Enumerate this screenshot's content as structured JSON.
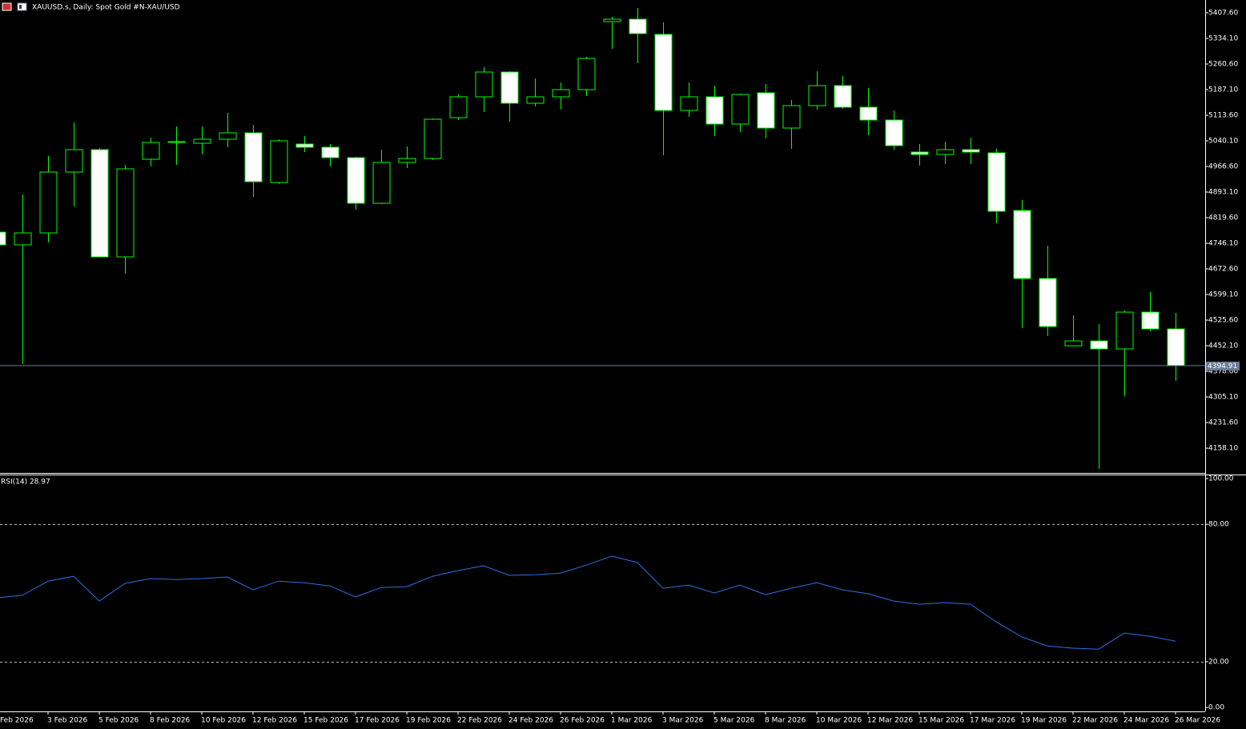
{
  "chart_data": [
    {
      "type": "candlestick",
      "title": "XAUUSD.s, Daily:  Spot Gold #N-XAU/USD",
      "categories": [
        "Feb 2026",
        null,
        "3 Feb 2026",
        null,
        "5 Feb 2026",
        null,
        "8 Feb 2026",
        null,
        "10 Feb 2026",
        null,
        "12 Feb 2026",
        null,
        "15 Feb 2026",
        null,
        "17 Feb 2026",
        null,
        "19 Feb 2026",
        null,
        "22 Feb 2026",
        null,
        "24 Feb 2026",
        null,
        "26 Feb 2026",
        null,
        "1 Mar 2026",
        null,
        "3 Mar 2026",
        null,
        "5 Mar 2026",
        null,
        "8 Mar 2026",
        null,
        "10 Mar 2026",
        null,
        "12 Mar 2026",
        null,
        "15 Mar 2026",
        null,
        "17 Mar 2026",
        null,
        "19 Mar 2026",
        null,
        "22 Mar 2026",
        null,
        "24 Mar 2026",
        null,
        "26 Mar 2026"
      ],
      "open": [
        4778.2,
        4741.5,
        4775.9,
        4950.5,
        5014.8,
        4707.0,
        4987.2,
        5035.5,
        5033.2,
        5044.7,
        5063.0,
        4920.6,
        5030.9,
        5021.7,
        4991.8,
        4860.9,
        4978.1,
        4989.5,
        5106.7,
        5166.4,
        5237.6,
        5148.0,
        5166.4,
        5187.1,
        5382.3,
        5389.2,
        5345.6,
        5127.4,
        5166.4,
        5088.3,
        5177.9,
        5076.8,
        5141.1,
        5198.6,
        5136.6,
        5099.8,
        5007.9,
        5001.0,
        5014.8,
        5005.6,
        4840.2,
        4645.0,
        4452.0,
        4465.8,
        4442.9,
        4548.5,
        4500.3
      ],
      "high": [
        4782.8,
        4886.2,
        4996.4,
        5092.9,
        5019.4,
        4971.2,
        5049.3,
        5081.4,
        5081.4,
        5120.5,
        5086.0,
        5044.7,
        5053.9,
        5030.9,
        4994.1,
        5014.8,
        5024.0,
        5104.4,
        5173.3,
        5251.4,
        5239.9,
        5219.2,
        5207.8,
        5281.3,
        5396.1,
        5421.4,
        5380.0,
        5207.8,
        5198.6,
        5175.6,
        5203.2,
        5157.2,
        5239.9,
        5226.1,
        5191.7,
        5127.4,
        5030.9,
        5037.8,
        5049.3,
        5017.1,
        4870.1,
        4739.2,
        4539.3,
        4514.1,
        4553.1,
        4605.9,
        4546.2
      ],
      "low": [
        4736.9,
        4399.2,
        4748.4,
        4851.7,
        4707.0,
        4658.8,
        4966.6,
        4971.2,
        5001.0,
        5021.7,
        4879.3,
        4916.0,
        5007.9,
        4966.6,
        4842.5,
        4858.6,
        4962.0,
        4985.0,
        5099.8,
        5122.8,
        5095.2,
        5138.9,
        5129.7,
        5168.7,
        5304.2,
        5262.9,
        4998.7,
        5109.0,
        5053.9,
        5065.3,
        5047.0,
        5017.1,
        5129.7,
        5132.0,
        5056.2,
        5014.8,
        4968.9,
        4973.5,
        4973.5,
        4803.5,
        4502.6,
        4479.6,
        4452.0,
        4098.3,
        4307.3,
        4493.4,
        4351.0
      ],
      "close": [
        4741.5,
        4775.9,
        4950.5,
        5014.8,
        4707.0,
        4959.7,
        5035.5,
        5037.8,
        5044.7,
        5063.0,
        4922.9,
        5040.1,
        5021.7,
        4991.8,
        4860.9,
        4978.1,
        4989.5,
        5102.1,
        5166.4,
        5237.6,
        5148.0,
        5166.4,
        5187.1,
        5276.7,
        5389.2,
        5347.9,
        5127.4,
        5166.4,
        5088.3,
        5173.3,
        5076.8,
        5141.1,
        5198.6,
        5136.6,
        5099.8,
        5026.3,
        5001.0,
        5014.8,
        5007.9,
        4837.9,
        4645.0,
        4507.2,
        4465.8,
        4442.9,
        4548.5,
        4500.3,
        4394.91
      ],
      "wick_color": "#00ff00",
      "bull_fill": "#000000",
      "bear_fill": "#ffffff",
      "last_price": 4394.91,
      "last_price_color": "#6a7b95",
      "ylim": [
        4087.0,
        5444.3
      ],
      "yticks": [
        {
          "value": 5407.6,
          "label": "5407.60"
        },
        {
          "value": 5334.1,
          "label": "5334.10"
        },
        {
          "value": 5260.6,
          "label": "5260.60"
        },
        {
          "value": 5187.1,
          "label": "5187.10"
        },
        {
          "value": 5113.6,
          "label": "5113.60"
        },
        {
          "value": 5040.1,
          "label": "5040.10"
        },
        {
          "value": 4966.6,
          "label": "4966.60"
        },
        {
          "value": 4893.1,
          "label": "4893.10"
        },
        {
          "value": 4819.6,
          "label": "4819.60"
        },
        {
          "value": 4746.1,
          "label": "4746.10"
        },
        {
          "value": 4672.6,
          "label": "4672.60"
        },
        {
          "value": 4599.1,
          "label": "4599.10"
        },
        {
          "value": 4525.6,
          "label": "4525.60"
        },
        {
          "value": 4452.1,
          "label": "4452.10"
        },
        {
          "value": 4378.6,
          "label": "4378.60"
        },
        {
          "value": 4305.1,
          "label": "4305.10"
        },
        {
          "value": 4231.6,
          "label": "4231.60"
        },
        {
          "value": 4158.1,
          "label": "4158.10"
        }
      ],
      "grid": false
    },
    {
      "type": "line",
      "title": "RSI(14) 28.97",
      "color": "#2f6fe8",
      "values": [
        47.9,
        49.0,
        55.2,
        57.3,
        46.5,
        54.2,
        56.3,
        55.9,
        56.3,
        57.0,
        51.4,
        55.2,
        54.5,
        53.1,
        48.3,
        52.4,
        52.8,
        57.3,
        59.8,
        61.9,
        57.7,
        58.0,
        58.7,
        62.2,
        66.1,
        63.3,
        52.1,
        53.5,
        50.0,
        53.5,
        49.3,
        52.1,
        54.5,
        51.4,
        49.7,
        46.5,
        45.1,
        45.8,
        45.1,
        37.4,
        30.8,
        26.9,
        25.9,
        25.5,
        32.5,
        31.1,
        28.97
      ],
      "ylim": [
        -1.7,
        101.4
      ],
      "yticks": [
        {
          "value": 100,
          "label": "100.00"
        },
        {
          "value": 80,
          "label": "80.00"
        },
        {
          "value": 20,
          "label": "20.00"
        },
        {
          "value": 0,
          "label": "0.00"
        }
      ],
      "levels": [
        80,
        20
      ]
    }
  ]
}
